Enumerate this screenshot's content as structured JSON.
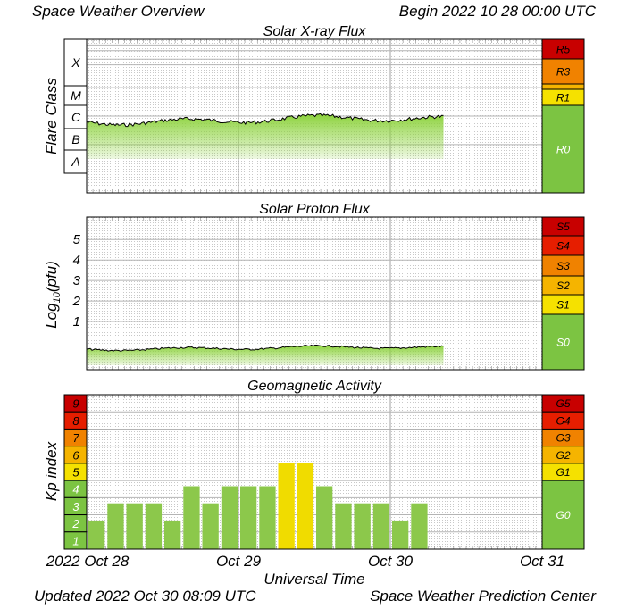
{
  "header": {
    "title": "Space Weather Overview",
    "begin": "Begin 2022 10 28 00:00 UTC"
  },
  "footer": {
    "updated": "Updated 2022 Oct 30 08:09 UTC",
    "source": "Space Weather Prediction Center"
  },
  "colors": {
    "flux_green": "#8cd23c",
    "kp_green": "#8cc84b",
    "kp_yellow": "#f0dc00",
    "scale_green": "#7cc442",
    "s1_yellow": "#f5e100",
    "s2_gold": "#f5b400",
    "s3_orange": "#f08200",
    "s4_red": "#e61e00",
    "s5_darkred": "#c80000"
  },
  "chart_data": [
    {
      "type": "area",
      "title": "Solar X-ray Flux",
      "ylabel": "Flare Class",
      "class_labels": [
        "X",
        "M",
        "C",
        "B",
        "A"
      ],
      "y_log_wm2": [
        -8.7,
        -3.3
      ],
      "x_days": [
        0,
        3
      ],
      "x_range_days": [
        0,
        2.35
      ],
      "baseline_log": -6.14,
      "scale_labels": [
        "R5",
        "R3",
        "R1",
        "R0"
      ]
    },
    {
      "type": "area",
      "title": "Solar Proton Flux",
      "ylabel": "Log10(pfu)",
      "ylabel_main": "Log",
      "ylabel_sub": "10",
      "ylabel_tail": "(pfu)",
      "tick_labels": [
        "5",
        "4",
        "3",
        "2",
        "1"
      ],
      "ylim": [
        -1.35,
        6.1
      ],
      "x_range_days": [
        0,
        2.35
      ],
      "baseline_log10_pfu": -0.3,
      "scale_labels": [
        "S5",
        "S4",
        "S3",
        "S2",
        "S1",
        "S0"
      ]
    },
    {
      "type": "bar",
      "title": "Geomagnetic Activity",
      "ylabel": "Kp index",
      "xlabel": "Universal Time",
      "ylim": [
        0,
        9
      ],
      "kp_labels": [
        "9",
        "8",
        "7",
        "6",
        "5",
        "4",
        "3",
        "2",
        "1"
      ],
      "x_ticks": [
        "2022 Oct 28",
        "Oct 29",
        "Oct 30",
        "Oct 31"
      ],
      "values": [
        1.67,
        2.67,
        2.67,
        2.67,
        1.67,
        3.67,
        2.67,
        3.67,
        3.67,
        3.67,
        5.0,
        5.0,
        3.67,
        2.67,
        2.67,
        2.67,
        1.67,
        2.67
      ],
      "scale_labels": [
        "G5",
        "G4",
        "G3",
        "G2",
        "G1",
        "G0"
      ]
    }
  ]
}
